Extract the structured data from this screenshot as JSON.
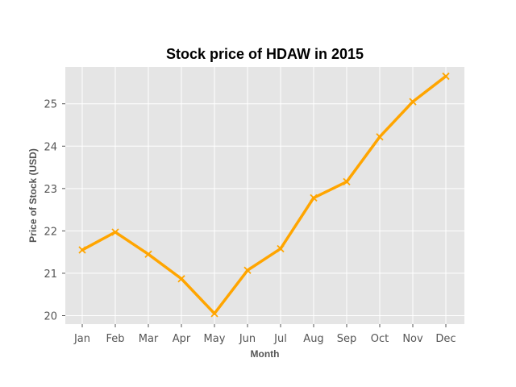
{
  "chart_data": {
    "type": "line",
    "title": "Stock price of HDAW in 2015",
    "xlabel": "Month",
    "ylabel": "Price of Stock (USD)",
    "categories": [
      "Jan",
      "Feb",
      "Mar",
      "Apr",
      "May",
      "Jun",
      "Jul",
      "Aug",
      "Sep",
      "Oct",
      "Nov",
      "Dec"
    ],
    "series": [
      {
        "values": [
          21.55,
          21.97,
          21.45,
          20.87,
          20.05,
          21.07,
          21.58,
          22.78,
          23.16,
          24.22,
          25.05,
          25.65
        ]
      }
    ],
    "ylim": [
      19.8,
      25.87
    ],
    "yticks": [
      20,
      21,
      22,
      23,
      24,
      25
    ],
    "grid": true,
    "marker": "x",
    "line_color": "#FFA500",
    "plot_background": "#E5E5E5",
    "grid_color": "#FFFFFF"
  }
}
